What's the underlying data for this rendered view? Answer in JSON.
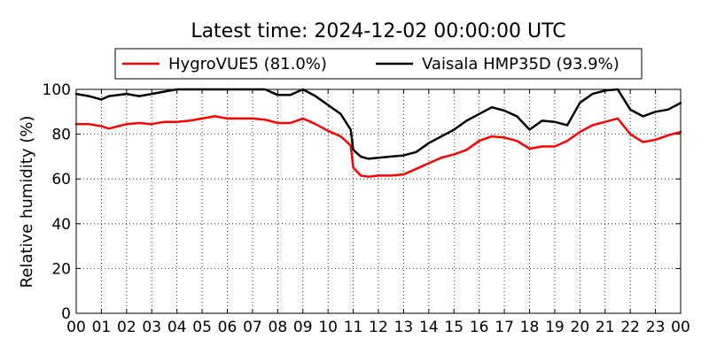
{
  "chart_data": {
    "type": "line",
    "title": "Latest time: 2024-12-02 00:00:00 UTC",
    "xlabel": "",
    "ylabel": "Relative humidity (%)",
    "ylim": [
      0,
      100
    ],
    "xlim": [
      0,
      24
    ],
    "grid": true,
    "legend_position": "top",
    "x_tick_labels": [
      "00",
      "01",
      "02",
      "03",
      "04",
      "05",
      "06",
      "07",
      "08",
      "09",
      "10",
      "11",
      "12",
      "13",
      "14",
      "15",
      "16",
      "17",
      "18",
      "19",
      "20",
      "21",
      "22",
      "23",
      "00"
    ],
    "y_tick_labels": [
      "0",
      "20",
      "40",
      "60",
      "80",
      "100"
    ],
    "series": [
      {
        "name": "HygroVUE5 (81.0%)",
        "color": "#ff0000",
        "x": [
          0,
          0.5,
          1,
          1.3,
          2,
          2.5,
          3,
          3.5,
          4,
          4.5,
          5,
          5.5,
          6,
          6.5,
          7,
          7.5,
          8,
          8.5,
          9,
          9.5,
          10,
          10.5,
          10.9,
          11,
          11.3,
          11.6,
          12,
          12.5,
          13,
          13.5,
          14,
          14.5,
          15,
          15.5,
          16,
          16.5,
          17,
          17.5,
          18,
          18.5,
          19,
          19.5,
          20,
          20.5,
          21,
          21.5,
          22,
          22.5,
          23,
          23.5,
          24
        ],
        "values": [
          84.5,
          84.5,
          83.5,
          82.5,
          84.5,
          85,
          84.5,
          85.5,
          85.5,
          86,
          87,
          88,
          87,
          87,
          87,
          86.5,
          85,
          85,
          87,
          84.5,
          81.5,
          79,
          75,
          65,
          61.5,
          61,
          61.5,
          61.5,
          62,
          64.5,
          67,
          69.5,
          71,
          73,
          77,
          79,
          78.5,
          77,
          73.5,
          74.5,
          74.5,
          77,
          81,
          84,
          85.5,
          87,
          80,
          76.5,
          77.5,
          79.5,
          81
        ]
      },
      {
        "name": "Vaisala HMP35D (93.9%)",
        "color": "#000000",
        "x": [
          0,
          0.5,
          1,
          1.3,
          2,
          2.5,
          3,
          3.5,
          4,
          4.5,
          5,
          5.5,
          6,
          6.5,
          7,
          7.5,
          8,
          8.5,
          9,
          9.5,
          10,
          10.5,
          10.9,
          11,
          11.3,
          11.6,
          12,
          12.5,
          13,
          13.5,
          14,
          14.5,
          15,
          15.5,
          16,
          16.5,
          17,
          17.5,
          18,
          18.5,
          19,
          19.5,
          20,
          20.5,
          21,
          21.5,
          22,
          22.5,
          23,
          23.5,
          24
        ],
        "values": [
          98,
          97,
          95.5,
          97,
          98,
          97,
          98,
          99,
          100,
          100,
          100,
          100,
          100,
          100,
          100,
          100,
          97.5,
          97.5,
          100,
          97,
          93,
          89,
          82,
          73,
          70,
          69,
          69.5,
          70,
          70.5,
          72,
          76,
          79,
          82,
          86,
          89,
          92,
          90.5,
          88,
          82,
          86,
          85.5,
          84,
          94,
          98,
          99.5,
          100,
          91,
          88,
          90,
          91,
          93.9
        ]
      }
    ]
  }
}
